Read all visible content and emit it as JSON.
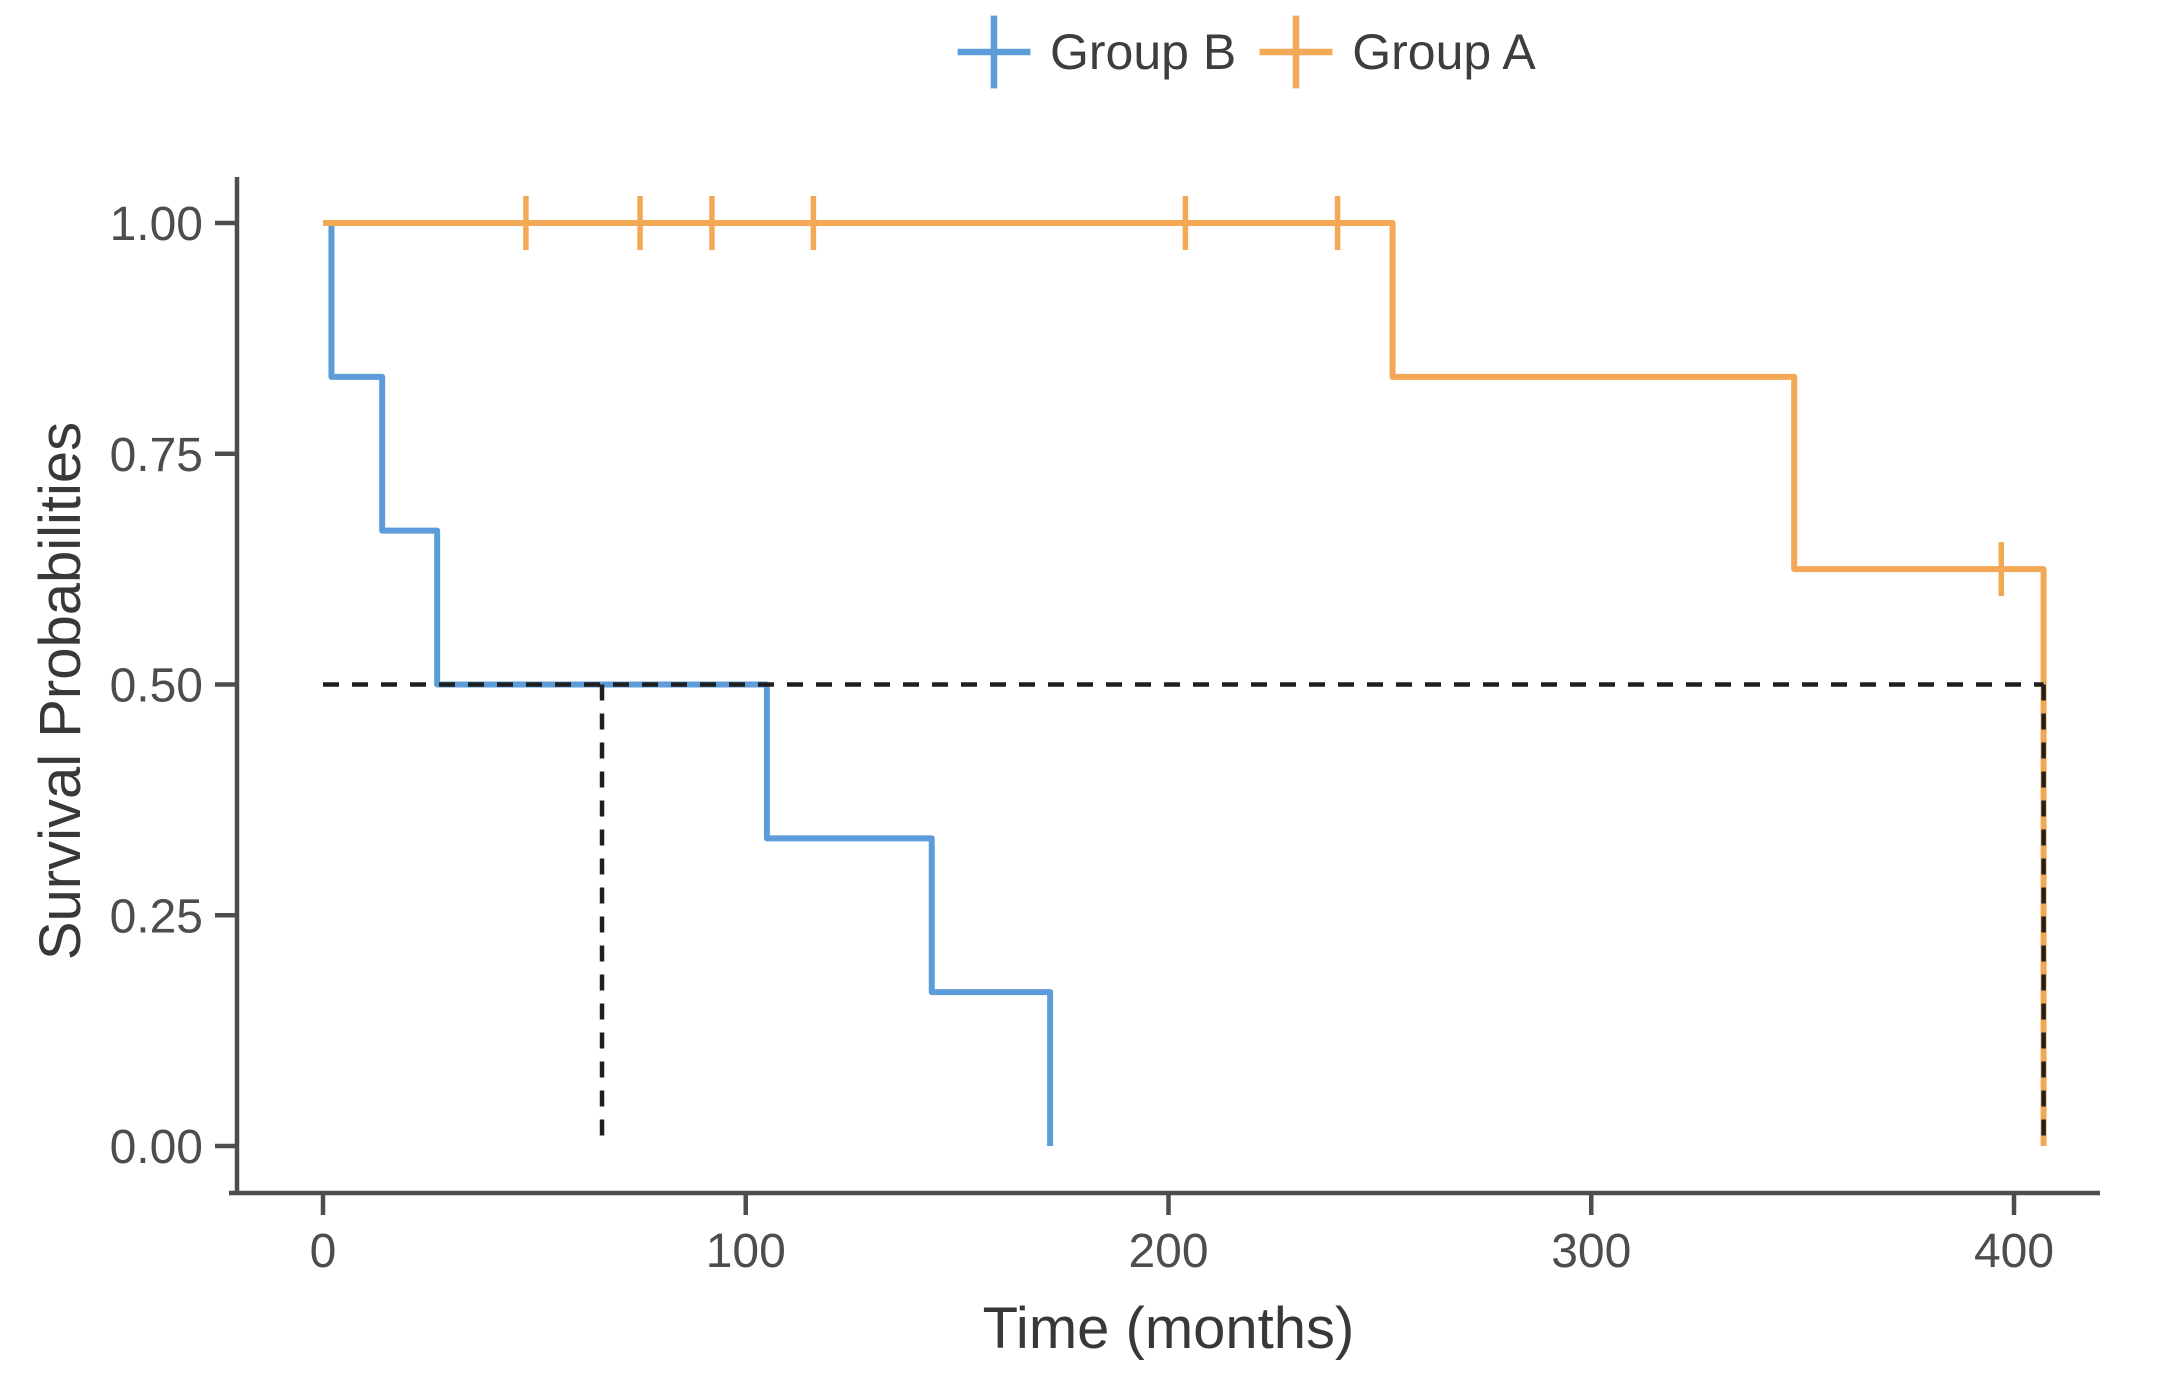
{
  "chart_data": {
    "type": "line",
    "subtype": "kaplan_meier_step_plot",
    "title": "",
    "xlabel": "Time (months)",
    "ylabel": "Survival Probabilities",
    "x_ticks": [
      0,
      100,
      200,
      300,
      400
    ],
    "y_tick_labels": [
      "0.00",
      "0.25",
      "0.50",
      "0.75",
      "1.00"
    ],
    "y_tick_values": [
      0,
      0.25,
      0.5,
      0.75,
      1.0
    ],
    "xlim": [
      -20,
      420
    ],
    "ylim": [
      0,
      1
    ],
    "grid": false,
    "legend_position": "top-center",
    "colors": {
      "group_b": "#5C9CD9",
      "group_a": "#F2A854",
      "axis": "#4D4D4D",
      "tick_text": "#4D4D4D",
      "title_text": "#383838",
      "median_dash": "#1F1F1F",
      "background": "#FFFFFF"
    },
    "legend": [
      {
        "label": "Group B",
        "color": "#5C9CD9",
        "marker": "plus-cross"
      },
      {
        "label": "Group A",
        "color": "#F2A854",
        "marker": "plus-cross"
      }
    ],
    "series": [
      {
        "name": "Group B",
        "color": "#5C9CD9",
        "steps": [
          [
            0,
            1.0
          ],
          [
            2,
            0.8333
          ],
          [
            14,
            0.6667
          ],
          [
            27,
            0.5
          ],
          [
            105,
            0.3333
          ],
          [
            144,
            0.1667
          ],
          [
            172,
            0.0
          ]
        ],
        "censor_points": []
      },
      {
        "name": "Group A",
        "color": "#F2A854",
        "steps": [
          [
            0,
            1.0
          ],
          [
            253,
            0.8333
          ],
          [
            348,
            0.625
          ],
          [
            407,
            0.0
          ]
        ],
        "censor_points": [
          [
            48,
            1.0
          ],
          [
            75,
            1.0
          ],
          [
            92,
            1.0
          ],
          [
            116,
            1.0
          ],
          [
            204,
            1.0
          ],
          [
            240,
            1.0
          ],
          [
            397,
            0.625
          ]
        ]
      }
    ],
    "median_lines": {
      "horizontal": {
        "y": 0.5,
        "x_from": 0,
        "x_to": 407
      },
      "vertical": [
        {
          "x": 66,
          "y_from": 0.5,
          "y_to": 0.0
        },
        {
          "x": 407,
          "y_from": 0.5,
          "y_to": 0.0
        }
      ]
    }
  }
}
